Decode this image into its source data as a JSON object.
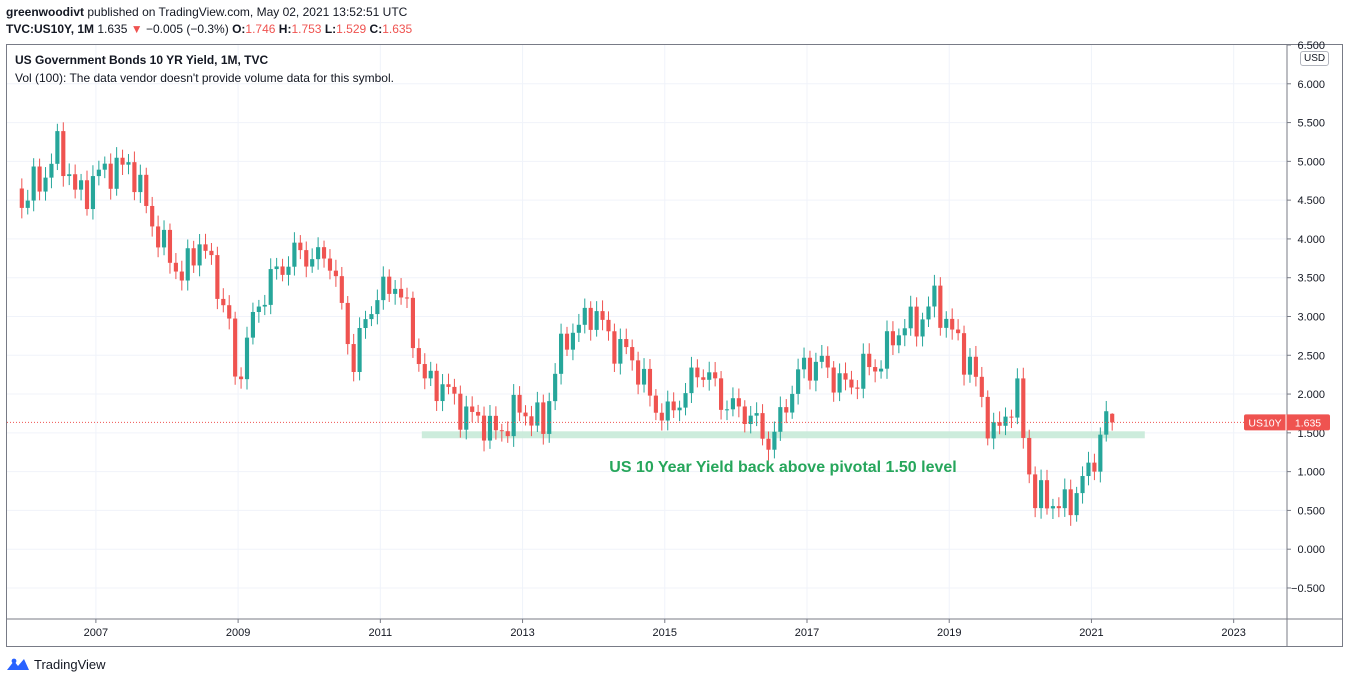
{
  "header": {
    "author": "greenwoodivt",
    "published_text": "published on TradingView.com, May 02, 2021 13:52:51 UTC",
    "symbol": "TVC:US10Y, 1M",
    "last": "1.635",
    "change_arrow": "▼",
    "change": "−0.005 (−0.3%)",
    "o_label": "O:",
    "o": "1.746",
    "h_label": "H:",
    "h": "1.753",
    "l_label": "L:",
    "l": "1.529",
    "c_label": "C:",
    "c": "1.635"
  },
  "legend": {
    "title": "US Government Bonds 10 YR Yield, 1M, TVC",
    "vol_note": "Vol (100): The data vendor doesn't provide volume data for this symbol."
  },
  "currency_badge": "USD",
  "price_tag": {
    "symbol": "US10Y",
    "value": "1.635"
  },
  "annotation": "US 10 Year Yield back above pivotal 1.50 level",
  "footer": {
    "brand": "TradingView"
  },
  "colors": {
    "up": "#26a69a",
    "down": "#ef5350",
    "zone": "#c8ead8",
    "annotation": "#26a65b",
    "price_line": "#ef5350",
    "grid": "#f0f3fa"
  },
  "chart_data": {
    "type": "candlestick",
    "x_ticks": [
      "2007",
      "2009",
      "2011",
      "2013",
      "2015",
      "2017",
      "2019",
      "2021",
      "2023"
    ],
    "y_ticks": [
      "6.500",
      "6.000",
      "5.500",
      "5.000",
      "4.500",
      "4.000",
      "3.500",
      "3.000",
      "2.500",
      "2.000",
      "1.500",
      "1.000",
      "0.500",
      "0.000",
      "−0.500"
    ],
    "ylim": [
      -0.9,
      6.5
    ],
    "xlim": [
      "2005-10",
      "2023-10"
    ],
    "current_price": 1.635,
    "support_zone": {
      "from": 1.43,
      "to": 1.52,
      "start": "2011-08",
      "end": "2021-10"
    },
    "ohlc_yearly": [
      {
        "period": "2006",
        "open": 4.4,
        "high": 5.25,
        "low": 4.3,
        "close": 4.7
      },
      {
        "period": "2007",
        "open": 4.7,
        "high": 5.32,
        "low": 3.85,
        "close": 4.02
      },
      {
        "period": "2008",
        "open": 4.02,
        "high": 4.3,
        "low": 2.05,
        "close": 2.21
      },
      {
        "period": "2009",
        "open": 2.21,
        "high": 4.0,
        "low": 2.1,
        "close": 3.84
      },
      {
        "period": "2010",
        "open": 3.84,
        "high": 4.0,
        "low": 2.35,
        "close": 3.29
      },
      {
        "period": "2011",
        "open": 3.29,
        "high": 3.75,
        "low": 1.72,
        "close": 1.88
      },
      {
        "period": "2012",
        "open": 1.88,
        "high": 2.4,
        "low": 1.38,
        "close": 1.76
      },
      {
        "period": "2013",
        "open": 1.76,
        "high": 3.05,
        "low": 1.61,
        "close": 3.03
      },
      {
        "period": "2014",
        "open": 3.03,
        "high": 3.05,
        "low": 2.06,
        "close": 2.17
      },
      {
        "period": "2015",
        "open": 2.17,
        "high": 2.5,
        "low": 1.65,
        "close": 2.27
      },
      {
        "period": "2016",
        "open": 2.27,
        "high": 2.64,
        "low": 1.32,
        "close": 2.44
      },
      {
        "period": "2017",
        "open": 2.44,
        "high": 2.64,
        "low": 2.03,
        "close": 2.41
      },
      {
        "period": "2018",
        "open": 2.41,
        "high": 3.25,
        "low": 2.4,
        "close": 2.69
      },
      {
        "period": "2019",
        "open": 2.69,
        "high": 2.79,
        "low": 1.43,
        "close": 1.92
      },
      {
        "period": "2020",
        "open": 1.92,
        "high": 1.95,
        "low": 0.32,
        "close": 0.92
      },
      {
        "period": "2021",
        "open": 0.92,
        "high": 1.77,
        "low": 0.9,
        "close": 1.635
      }
    ],
    "anchors": [
      [
        "2005-12",
        4.4
      ],
      [
        "2006-06",
        5.15
      ],
      [
        "2006-09",
        4.6
      ],
      [
        "2007-06",
        5.02
      ],
      [
        "2007-08",
        4.55
      ],
      [
        "2008-03",
        3.45
      ],
      [
        "2008-06",
        4.05
      ],
      [
        "2008-11",
        2.9
      ],
      [
        "2008-12",
        2.21
      ],
      [
        "2009-06",
        3.55
      ],
      [
        "2009-12",
        3.84
      ],
      [
        "2010-04",
        3.7
      ],
      [
        "2010-08",
        2.47
      ],
      [
        "2010-12",
        3.29
      ],
      [
        "2011-03",
        3.47
      ],
      [
        "2011-08",
        2.22
      ],
      [
        "2011-10",
        2.11
      ],
      [
        "2012-07",
        1.51
      ],
      [
        "2012-12",
        1.76
      ],
      [
        "2013-04",
        1.67
      ],
      [
        "2013-08",
        2.78
      ],
      [
        "2013-12",
        3.03
      ],
      [
        "2014-06",
        2.52
      ],
      [
        "2015-01",
        1.64
      ],
      [
        "2015-06",
        2.35
      ],
      [
        "2015-09",
        2.04
      ],
      [
        "2016-06",
        1.47
      ],
      [
        "2016-07",
        1.45
      ],
      [
        "2016-12",
        2.44
      ],
      [
        "2017-08",
        2.12
      ],
      [
        "2017-12",
        2.41
      ],
      [
        "2018-05",
        2.86
      ],
      [
        "2018-10",
        3.15
      ],
      [
        "2019-02",
        2.72
      ],
      [
        "2019-08",
        1.5
      ],
      [
        "2019-12",
        1.92
      ],
      [
        "2020-03",
        0.67
      ],
      [
        "2020-07",
        0.53
      ],
      [
        "2020-12",
        0.92
      ],
      [
        "2021-03",
        1.74
      ],
      [
        "2021-04",
        1.635
      ]
    ]
  }
}
